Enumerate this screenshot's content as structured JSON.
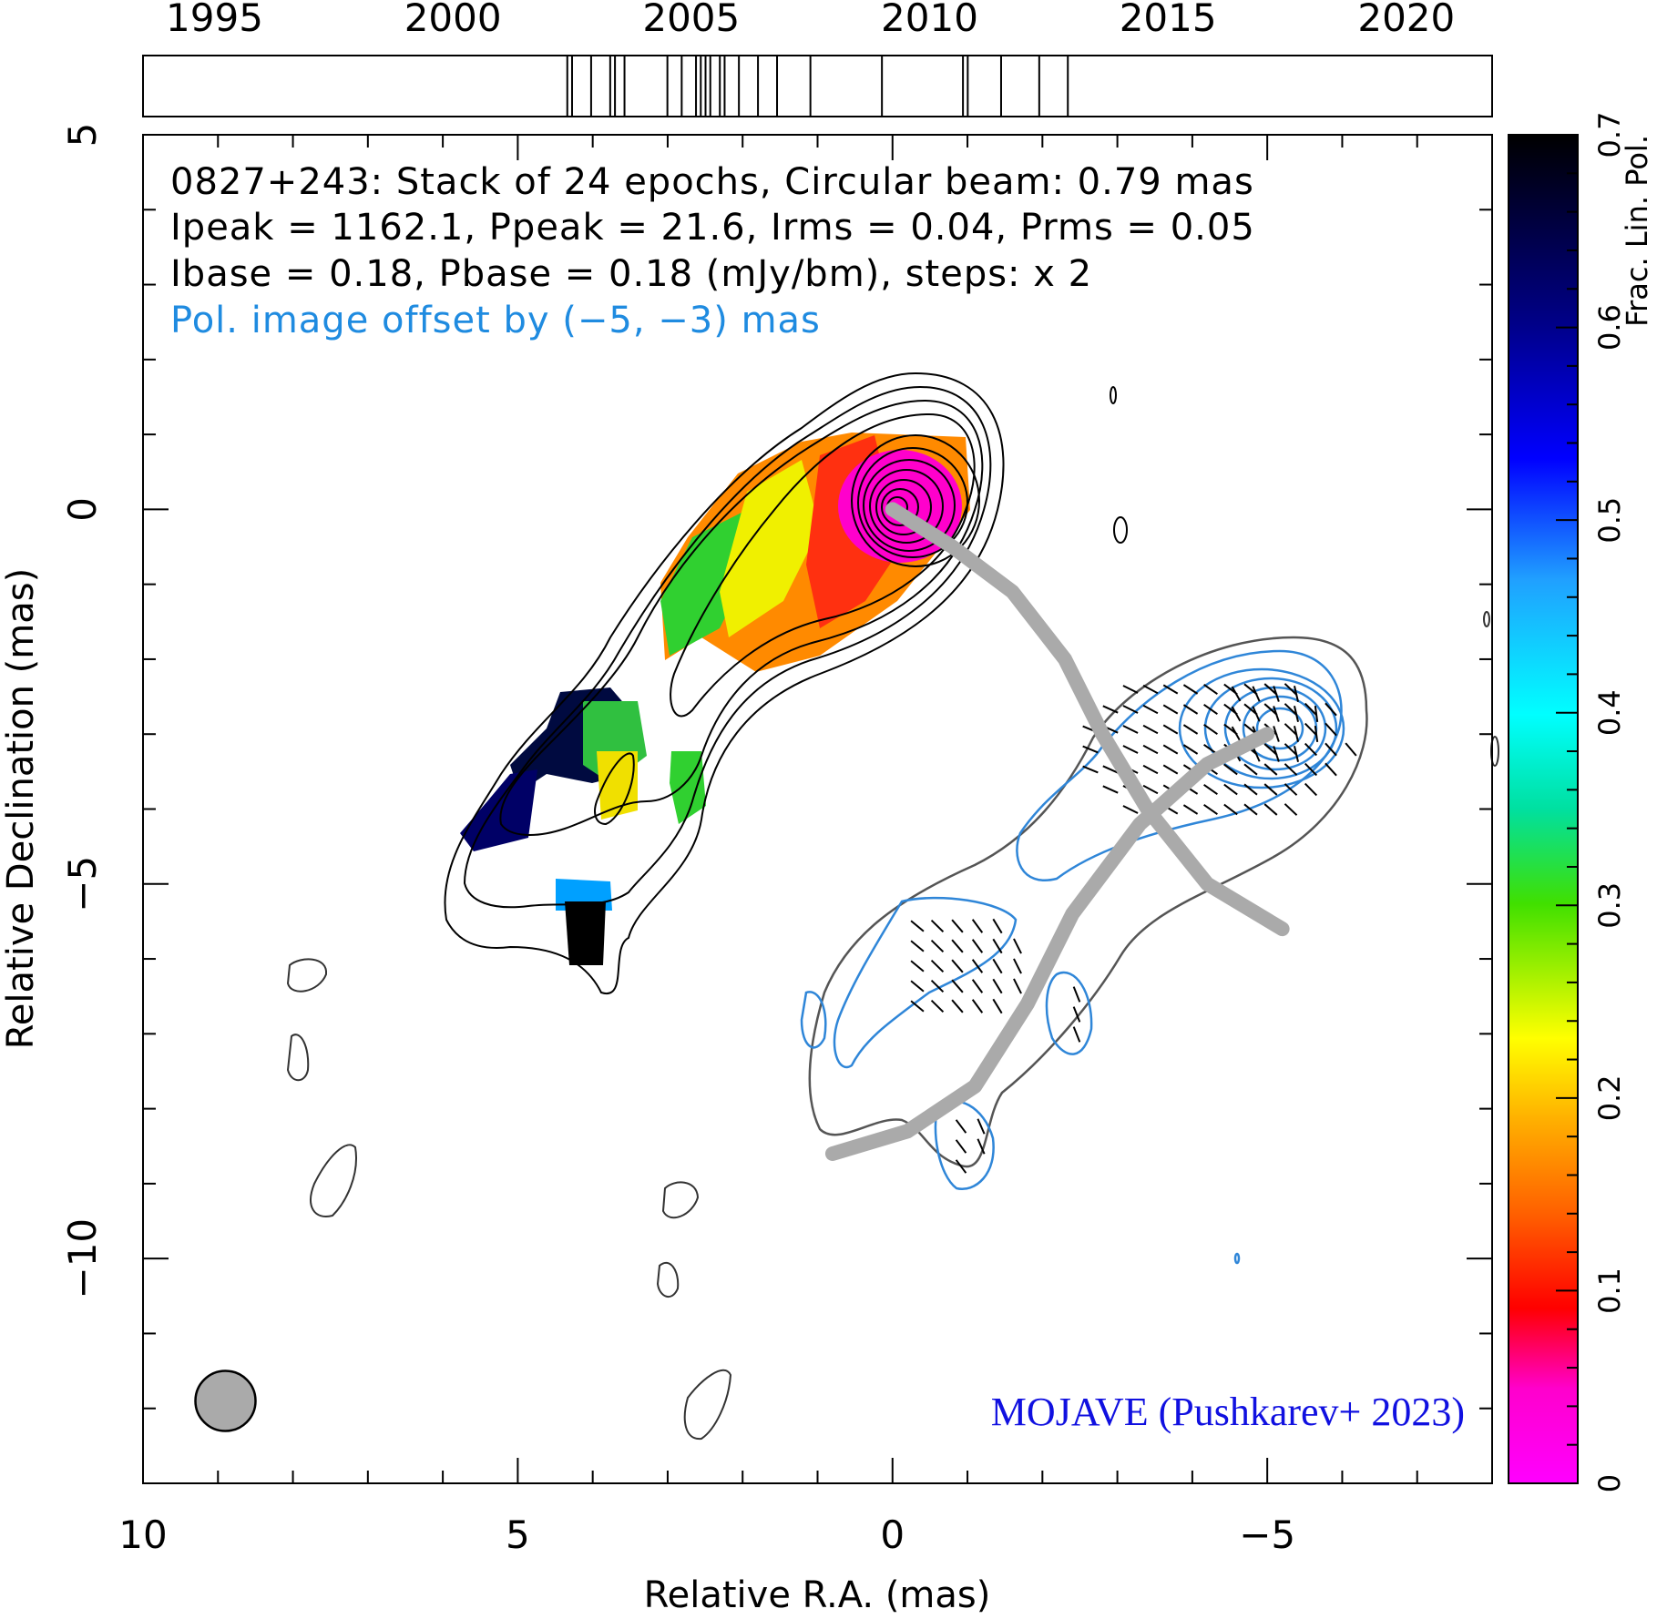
{
  "chart_data": {
    "type": "contour",
    "header_lines": [
      "0827+243: Stack of 24 epochs, Circular beam: 0.79 mas",
      "Ipeak = 1162.1, Ppeak = 21.6, Irms = 0.04, Prms = 0.05",
      "Ibase = 0.18, Pbase = 0.18 (mJy/bm), steps: x 2"
    ],
    "offset_note": "Pol. image offset by (−5, −3) mas",
    "credit": "MOJAVE (Pushkarev+ 2023)",
    "xlabel": "Relative R.A. (mas)",
    "ylabel": "Relative Declination (mas)",
    "xlim": [
      10,
      -8
    ],
    "ylim": [
      -13,
      5
    ],
    "x_ticks": [
      {
        "value": 10,
        "label": "10"
      },
      {
        "value": 5,
        "label": "5"
      },
      {
        "value": 0,
        "label": "0"
      },
      {
        "value": -5,
        "label": "−5"
      }
    ],
    "y_ticks": [
      {
        "value": 5,
        "label": "5"
      },
      {
        "value": 0,
        "label": "0"
      },
      {
        "value": -5,
        "label": "−5"
      },
      {
        "value": -10,
        "label": "−10"
      }
    ],
    "timeline": {
      "range": [
        1993.5,
        2021.8
      ],
      "ticks": [
        {
          "value": 1995,
          "label": "1995"
        },
        {
          "value": 2000,
          "label": "2000"
        },
        {
          "value": 2005,
          "label": "2005"
        },
        {
          "value": 2010,
          "label": "2010"
        },
        {
          "value": 2015,
          "label": "2015"
        },
        {
          "value": 2020,
          "label": "2020"
        }
      ],
      "epochs": [
        2002.4,
        2002.5,
        2002.9,
        2003.3,
        2003.4,
        2003.6,
        2004.5,
        2004.8,
        2005.1,
        2005.2,
        2005.3,
        2005.4,
        2005.6,
        2005.7,
        2006.0,
        2006.4,
        2006.8,
        2007.5,
        2009.0,
        2010.7,
        2010.8,
        2011.5,
        2012.3,
        2012.9
      ]
    },
    "colorbar": {
      "label": "Frac. Lin. Pol.",
      "range": [
        0,
        0.7
      ],
      "ticks": [
        {
          "value": 0,
          "label": "0"
        },
        {
          "value": 0.1,
          "label": "0.1"
        },
        {
          "value": 0.2,
          "label": "0.2"
        },
        {
          "value": 0.3,
          "label": "0.3"
        },
        {
          "value": 0.4,
          "label": "0.4"
        },
        {
          "value": 0.5,
          "label": "0.5"
        },
        {
          "value": 0.6,
          "label": "0.6"
        },
        {
          "value": 0.7,
          "label": "0.7"
        }
      ]
    },
    "beam": {
      "ra": 8.9,
      "dec": -11.9,
      "diameter_mas": 0.79
    },
    "jet_ridge_ra_dec": [
      [
        0,
        0
      ],
      [
        -0.8,
        -0.5
      ],
      [
        -1.6,
        -1.1
      ],
      [
        -2.3,
        -2.0
      ],
      [
        -2.8,
        -3.0
      ],
      [
        -3.4,
        -4.0
      ],
      [
        -4.2,
        -5.0
      ],
      [
        -5.2,
        -5.6
      ]
    ],
    "pol_ridge_ra_dec": [
      [
        -5.0,
        -3.0
      ],
      [
        -4.2,
        -3.4
      ],
      [
        -3.3,
        -4.2
      ],
      [
        -2.4,
        -5.4
      ],
      [
        -1.8,
        -6.6
      ],
      [
        -1.1,
        -7.7
      ],
      [
        -0.2,
        -8.3
      ],
      [
        0.8,
        -8.6
      ]
    ],
    "colors": {
      "stokes_i": "#000000",
      "pol_contour": "#2f86d8",
      "note_text": "#1f8be0",
      "credit_text": "#1010e0",
      "ridge": "#aaaaaa",
      "beam_fill": "#aaaaaa"
    }
  }
}
